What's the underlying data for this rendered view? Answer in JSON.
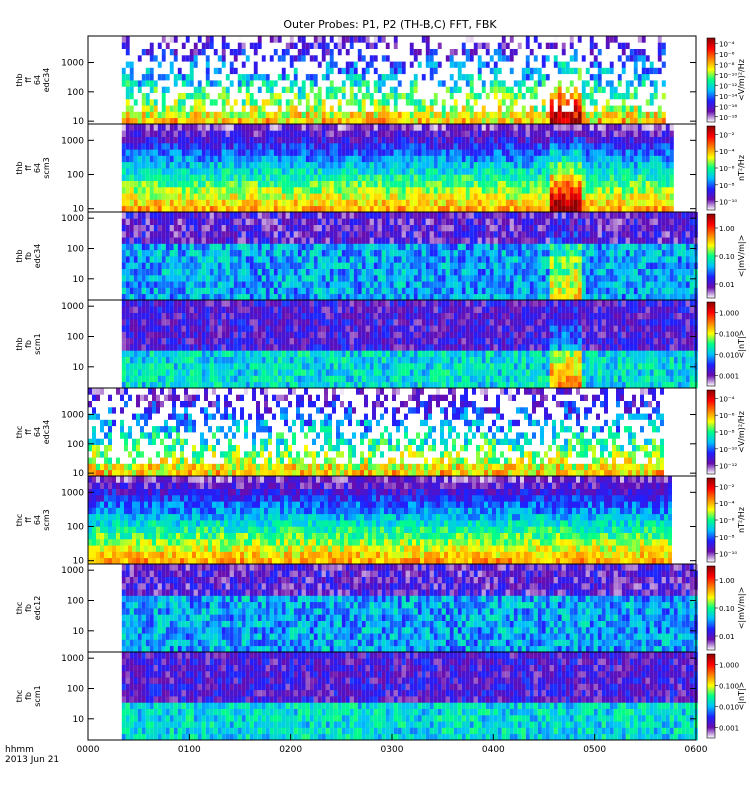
{
  "title": "Outer Probes: P1, P2 (TH-B,C) FFT, FBK",
  "xaxis": {
    "label_line1": "hhmm",
    "label_line2": "2013 Jun 21",
    "ticks": [
      "0000",
      "0100",
      "0200",
      "0300",
      "0400",
      "0500",
      "0600"
    ],
    "range_minutes": [
      0,
      360
    ]
  },
  "colors": {
    "colorbar_stops": [
      "#ffffff",
      "#6a0dad",
      "#1f1fff",
      "#00bfff",
      "#00ff88",
      "#ffff00",
      "#ff8000",
      "#ff0000",
      "#8b0000"
    ]
  },
  "chart_data": [
    {
      "type": "heatmap",
      "probe": "thb",
      "mode": "ff",
      "rate": "64",
      "sensor": "edc34",
      "yticks": [
        "10",
        "100",
        "1000"
      ],
      "ylim": [
        8,
        8000
      ],
      "ylog": true,
      "data_range_minutes": [
        20,
        340
      ],
      "cbar_ticks": [
        "10⁻¹⁸",
        "10⁻¹⁶",
        "10⁻¹⁴",
        "10⁻¹²",
        "10⁻¹⁰",
        "10⁻⁸",
        "10⁻⁶",
        "10⁻⁴"
      ],
      "cbar_label": "<V/m)²/Hz"
    },
    {
      "type": "heatmap",
      "probe": "thb",
      "mode": "ff",
      "rate": "64",
      "sensor": "scm3",
      "yticks": [
        "10",
        "100",
        "1000"
      ],
      "ylim": [
        8,
        3000
      ],
      "ylog": true,
      "data_range_minutes": [
        20,
        345
      ],
      "cbar_ticks": [
        "10⁻¹⁰",
        "10⁻⁸",
        "10⁻⁶",
        "10⁻⁴",
        "10⁻²"
      ],
      "cbar_label": "nT²/Hz"
    },
    {
      "type": "heatmap",
      "probe": "thb",
      "mode": "fb",
      "rate": "",
      "sensor": "edc34",
      "yticks": [
        "10",
        "100",
        "1000"
      ],
      "ylim": [
        2,
        1600
      ],
      "ylog": true,
      "data_range_minutes": [
        20,
        360
      ],
      "cbar_ticks": [
        "0.01",
        "0.10",
        "1.00"
      ],
      "cbar_label": "<|mV/m|>"
    },
    {
      "type": "heatmap",
      "probe": "thb",
      "mode": "fb",
      "rate": "",
      "sensor": "scm1",
      "yticks": [
        "10",
        "100",
        "1000"
      ],
      "ylim": [
        2,
        1600
      ],
      "ylog": true,
      "data_range_minutes": [
        20,
        360
      ],
      "cbar_ticks": [
        "0.001",
        "0.010",
        "0.100",
        "1.000"
      ],
      "cbar_label": "<|nT|>"
    },
    {
      "type": "heatmap",
      "probe": "thc",
      "mode": "ff",
      "rate": "64",
      "sensor": "edc34",
      "yticks": [
        "10",
        "100",
        "1000"
      ],
      "ylim": [
        8,
        8000
      ],
      "ylog": true,
      "data_range_minutes": [
        0,
        340
      ],
      "cbar_ticks": [
        "10⁻¹²",
        "10⁻¹⁰",
        "10⁻⁸",
        "10⁻⁶",
        "10⁻⁴"
      ],
      "cbar_label": "<V/m)²/Hz"
    },
    {
      "type": "heatmap",
      "probe": "thc",
      "mode": "ff",
      "rate": "64",
      "sensor": "scm3",
      "yticks": [
        "10",
        "100",
        "1000"
      ],
      "ylim": [
        8,
        3000
      ],
      "ylog": true,
      "data_range_minutes": [
        0,
        345
      ],
      "cbar_ticks": [
        "10⁻¹⁰",
        "10⁻⁸",
        "10⁻⁶",
        "10⁻⁴",
        "10⁻²"
      ],
      "cbar_label": "nT²/Hz"
    },
    {
      "type": "heatmap",
      "probe": "thc",
      "mode": "fb",
      "rate": "",
      "sensor": "edc12",
      "yticks": [
        "10",
        "100",
        "1000"
      ],
      "ylim": [
        2,
        1600
      ],
      "ylog": true,
      "data_range_minutes": [
        20,
        360
      ],
      "cbar_ticks": [
        "0.01",
        "0.10",
        "1.00"
      ],
      "cbar_label": "<|mV/m|>"
    },
    {
      "type": "heatmap",
      "probe": "thc",
      "mode": "fb",
      "rate": "",
      "sensor": "scm1",
      "yticks": [
        "10",
        "100",
        "1000"
      ],
      "ylim": [
        2,
        1600
      ],
      "ylog": true,
      "data_range_minutes": [
        20,
        360
      ],
      "cbar_ticks": [
        "0.001",
        "0.010",
        "0.100",
        "1.000"
      ],
      "cbar_label": "<|nT|>"
    }
  ]
}
